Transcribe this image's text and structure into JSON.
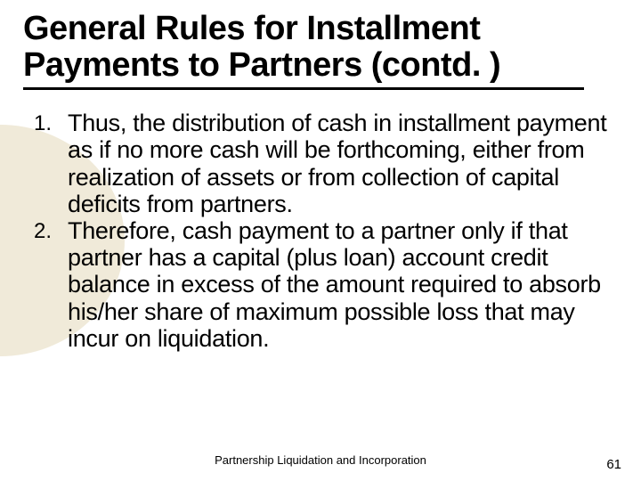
{
  "slide": {
    "title": "General Rules for Installment Payments to Partners (contd. )",
    "title_fontsize": 38,
    "title_color": "#000000",
    "underline_color": "#000000",
    "underline_width": 630,
    "bg_shape_color": "#f0ead9",
    "background_color": "#ffffff",
    "list": [
      {
        "num": "1.",
        "text": "Thus, the distribution of cash in installment payment as if no more cash will be forthcoming, either from realization of assets or from collection of capital deficits from partners."
      },
      {
        "num": "2.",
        "text": "Therefore, cash payment to a partner only if that partner has a capital (plus loan) account credit balance in excess of the amount required to absorb his/her share of maximum possible loss that may incur on liquidation."
      }
    ],
    "list_fontsize": 27,
    "list_num_fontsize": 24,
    "list_color": "#000000",
    "footer": "Partnership Liquidation and Incorporation",
    "footer_fontsize": 13,
    "page_number": "61",
    "page_number_fontsize": 15
  }
}
